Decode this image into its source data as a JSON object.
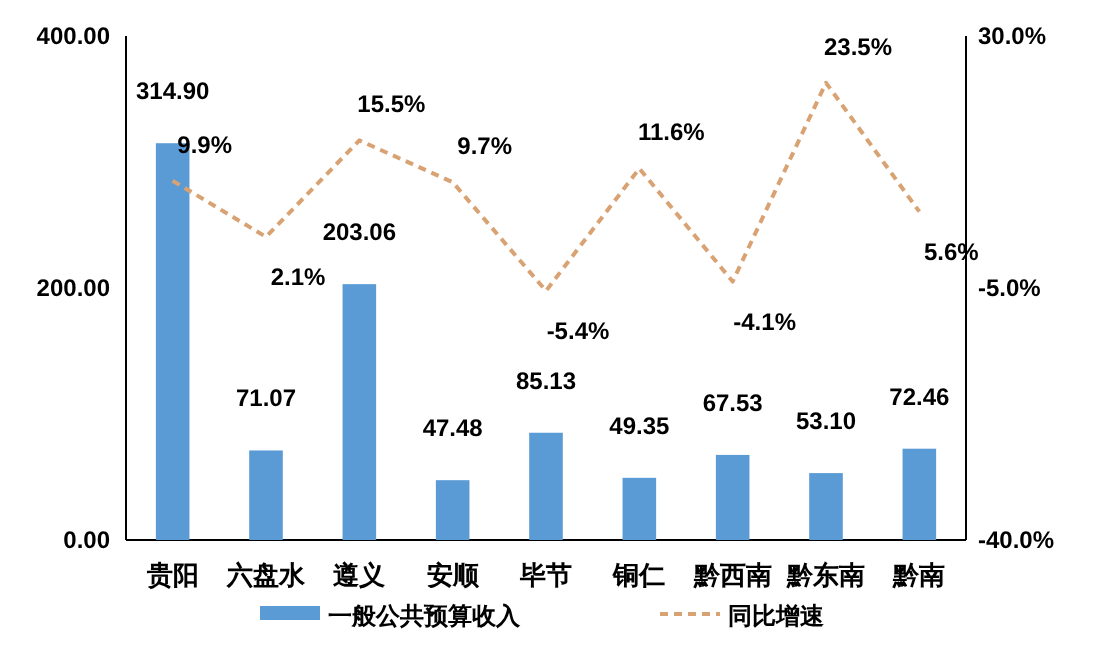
{
  "chart_data": {
    "type": "bar",
    "categories": [
      "贵阳",
      "六盘水",
      "遵义",
      "安顺",
      "毕节",
      "铜仁",
      "黔西南",
      "黔东南",
      "黔南"
    ],
    "series": [
      {
        "name": "一般公共预算收入",
        "color": "#5b9bd5",
        "values": [
          314.9,
          71.07,
          203.06,
          47.48,
          85.13,
          49.35,
          67.53,
          53.1,
          72.46
        ],
        "value_labels": [
          "314.90",
          "71.07",
          "203.06",
          "47.48",
          "85.13",
          "49.35",
          "67.53",
          "53.10",
          "72.46"
        ]
      },
      {
        "name": "同比增速",
        "type": "line",
        "axis": "y2",
        "color": "#d9a273",
        "line_style": "dashed",
        "values": [
          9.9,
          2.1,
          15.5,
          9.7,
          -5.4,
          11.6,
          -4.1,
          23.5,
          5.6
        ],
        "value_labels": [
          "9.9%",
          "2.1%",
          "15.5%",
          "9.7%",
          "-5.4%",
          "11.6%",
          "-4.1%",
          "23.5%",
          "5.6%"
        ]
      }
    ],
    "ylim": [
      0,
      400
    ],
    "yticks": [
      {
        "value": 0,
        "label": "0.00"
      },
      {
        "value": 200,
        "label": "200.00"
      },
      {
        "value": 400,
        "label": "400.00"
      }
    ],
    "y2lim": [
      -40,
      30
    ],
    "y2ticks": [
      {
        "value": -40,
        "label": "-40.0%"
      },
      {
        "value": -5,
        "label": "-5.0%"
      },
      {
        "value": 30,
        "label": "30.0%"
      }
    ],
    "grid": false,
    "legend": "bottom"
  }
}
